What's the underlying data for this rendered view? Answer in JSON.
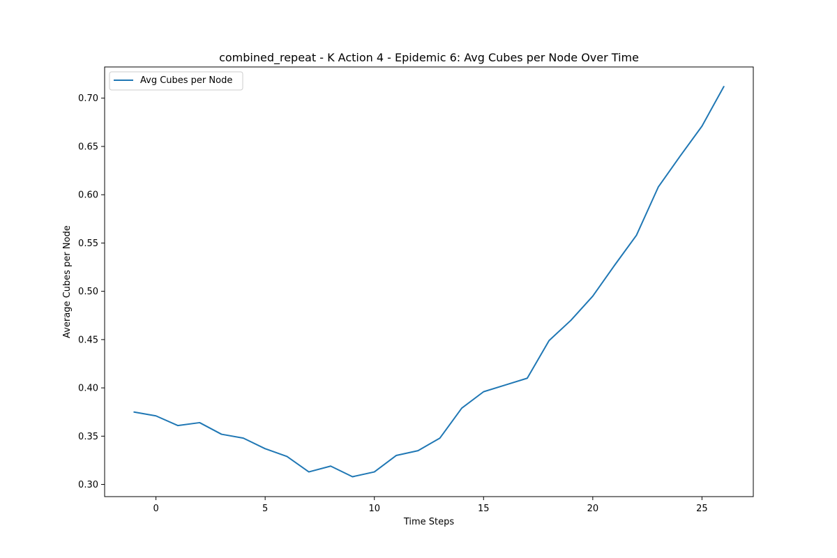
{
  "chart_data": {
    "type": "line",
    "title": "combined_repeat - K Action 4 - Epidemic 6: Avg Cubes per Node Over Time",
    "xlabel": "Time Steps",
    "ylabel": "Average Cubes per Node",
    "xlim": [
      -2.35,
      27.35
    ],
    "ylim": [
      0.2874,
      0.7323
    ],
    "xticks": [
      0,
      5,
      10,
      15,
      20,
      25
    ],
    "xtick_labels": [
      "0",
      "5",
      "10",
      "15",
      "20",
      "25"
    ],
    "yticks": [
      0.3,
      0.35,
      0.4,
      0.45,
      0.5,
      0.55,
      0.6,
      0.65,
      0.7
    ],
    "ytick_labels": [
      "0.30",
      "0.35",
      "0.40",
      "0.45",
      "0.50",
      "0.55",
      "0.60",
      "0.65",
      "0.70"
    ],
    "grid": false,
    "legend_position": "top-left",
    "series": [
      {
        "name": "Avg Cubes per Node",
        "color": "#1f77b4",
        "x": [
          -1,
          0,
          1,
          2,
          3,
          4,
          5,
          6,
          7,
          8,
          9,
          10,
          11,
          12,
          13,
          14,
          15,
          16,
          17,
          18,
          19,
          20,
          21,
          22,
          23,
          24,
          25,
          26
        ],
        "y": [
          0.375,
          0.371,
          0.361,
          0.364,
          0.352,
          0.348,
          0.337,
          0.329,
          0.313,
          0.319,
          0.308,
          0.313,
          0.33,
          0.335,
          0.348,
          0.379,
          0.396,
          0.403,
          0.41,
          0.449,
          0.47,
          0.495,
          0.527,
          0.558,
          0.608,
          0.64,
          0.671,
          0.712
        ]
      }
    ]
  }
}
